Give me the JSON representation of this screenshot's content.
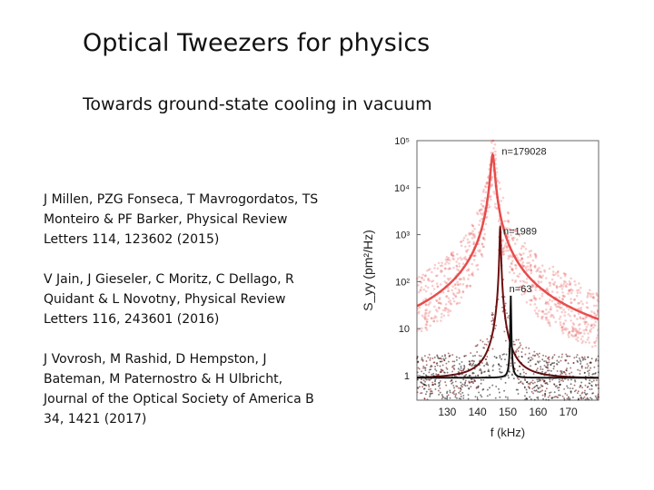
{
  "slide": {
    "title": "Optical Tweezers for physics",
    "subtitle": "Towards ground-state cooling in vacuum",
    "references": [
      "J Millen, PZG Fonseca, T Mavrogordatos, TS Monteiro & PF Barker, Physical Review Letters 114, 123602 (2015)",
      "V Jain, J Gieseler, C Moritz, C Dellago, R Quidant & L Novotny, Physical Review Letters 116, 243601 (2016)",
      "J Vovrosh, M Rashid, D Hempston, J Bateman, M Paternostro & H Ulbricht, Journal of the Optical Society of America B 34, 1421 (2017)"
    ]
  },
  "chart_data": {
    "type": "line",
    "title": "",
    "xlabel": "f (kHz)",
    "ylabel": "S_yy (pm²/Hz)",
    "xlim": [
      120,
      180
    ],
    "ylim": [
      0.3,
      100000
    ],
    "yscale": "log",
    "x_ticks": [
      130,
      140,
      150,
      160,
      170
    ],
    "y_ticks": [
      {
        "value": 1,
        "label": "1"
      },
      {
        "value": 10,
        "label": "10"
      },
      {
        "value": 100,
        "label": "10²"
      },
      {
        "value": 1000,
        "label": "10³"
      },
      {
        "value": 10000,
        "label": "10⁴"
      },
      {
        "value": 100000,
        "label": "10⁵"
      }
    ],
    "grid": false,
    "series": [
      {
        "name": "",
        "color": "#e43b3b",
        "center": 145,
        "peak": 50000,
        "linewidth_khz": 1.2,
        "baseline": 1.2,
        "annotation": "n=179028",
        "annotation_at": [
          148,
          50000
        ]
      },
      {
        "name": "",
        "color": "#6b0f0f",
        "center": 147.5,
        "peak": 1500,
        "linewidth_khz": 0.35,
        "baseline": 0.85,
        "annotation": "n=1989",
        "annotation_at": [
          148.5,
          1000
        ]
      },
      {
        "name": "",
        "color": "#111111",
        "center": 151,
        "peak": 50,
        "linewidth_khz": 0.18,
        "baseline": 0.9,
        "annotation": "n=63",
        "annotation_at": [
          150.5,
          60
        ]
      }
    ]
  }
}
